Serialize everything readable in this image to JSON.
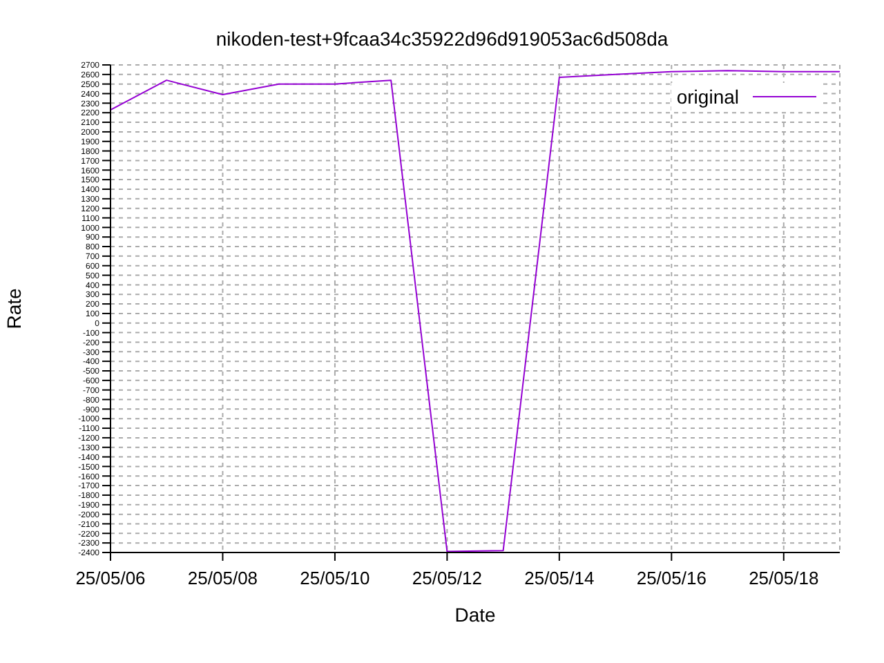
{
  "chart_data": {
    "type": "line",
    "title": "nikoden-test+9fcaa34c35922d96d919053ac6d508da",
    "xlabel": "Date",
    "ylabel": "Rate",
    "x": [
      "--05-06",
      "--05-07",
      "--05-08",
      "--05-09",
      "--05-10",
      "--05-11",
      "--05-12",
      "--05-13",
      "--05-14",
      "--05-15",
      "--05-16",
      "--05-17",
      "--05-18",
      "--05-19"
    ],
    "series": [
      {
        "name": "original",
        "color": "#9400d3",
        "values": [
          2230,
          2540,
          2390,
          2500,
          2500,
          2540,
          -2390,
          -2380,
          2570,
          2600,
          2630,
          2640,
          2630,
          2630
        ]
      }
    ],
    "xlim": [
      "--05-06",
      "--05-19"
    ],
    "xticks": [
      {
        "value": "--05-06",
        "label": "25/05/06"
      },
      {
        "value": "--05-08",
        "label": "25/05/08"
      },
      {
        "value": "--05-10",
        "label": "25/05/10"
      },
      {
        "value": "--05-12",
        "label": "25/05/12"
      },
      {
        "value": "--05-14",
        "label": "25/05/14"
      },
      {
        "value": "--05-16",
        "label": "25/05/16"
      },
      {
        "value": "--05-18",
        "label": "25/05/18"
      }
    ],
    "ylim": [
      -2400,
      2700
    ],
    "yticks": [
      -2400,
      -2300,
      -2200,
      -2100,
      -2000,
      -1900,
      -1800,
      -1700,
      -1600,
      -1500,
      -1400,
      -1300,
      -1200,
      -1100,
      -1000,
      -900,
      -800,
      -700,
      -600,
      -500,
      -400,
      -300,
      -200,
      -100,
      0,
      100,
      200,
      300,
      400,
      500,
      600,
      700,
      800,
      900,
      1000,
      1100,
      1200,
      1300,
      1400,
      1500,
      1600,
      1700,
      1800,
      1900,
      2000,
      2100,
      2200,
      2300,
      2400,
      2500,
      2600,
      2700
    ],
    "grid": true,
    "legend": "top right",
    "marker": "none",
    "line_style": "solid"
  }
}
